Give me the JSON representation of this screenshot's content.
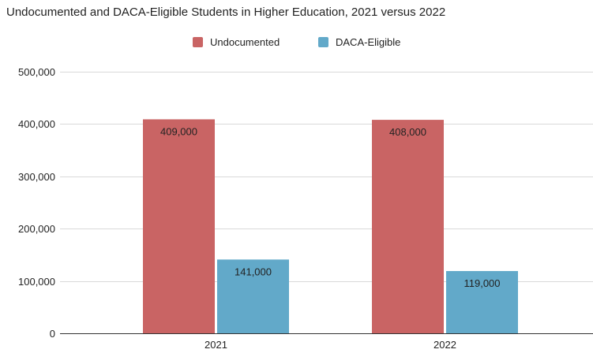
{
  "chart_data": {
    "type": "bar",
    "title": "Undocumented and DACA-Eligible Students in Higher Education, 2021 versus 2022",
    "categories": [
      "2021",
      "2022"
    ],
    "series": [
      {
        "name": "Undocumented",
        "color": "#c96464",
        "values": [
          409000,
          408000
        ],
        "labels": [
          "409,000",
          "408,000"
        ]
      },
      {
        "name": "DACA-Eligible",
        "color": "#62a9c9",
        "values": [
          141000,
          119000
        ],
        "labels": [
          "141,000",
          "119,000"
        ]
      }
    ],
    "ylim": [
      0,
      500000
    ],
    "yticks": [
      0,
      100000,
      200000,
      300000,
      400000,
      500000
    ],
    "ytick_labels": [
      "0",
      "100,000",
      "200,000",
      "300,000",
      "400,000",
      "500,000"
    ],
    "grid": true,
    "legend": "top-center",
    "xlabel": "",
    "ylabel": ""
  }
}
